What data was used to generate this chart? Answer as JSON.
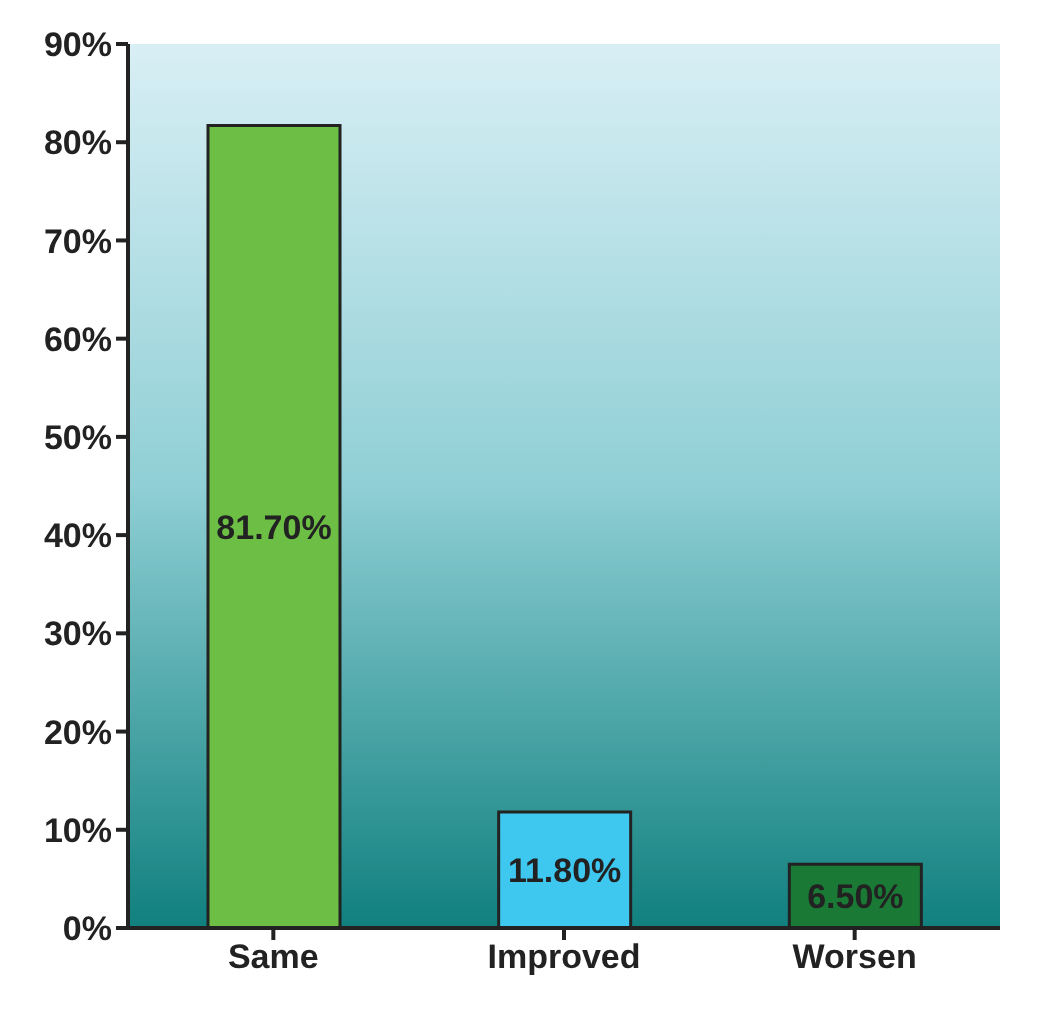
{
  "chart_data": {
    "type": "bar",
    "categories": [
      "Same",
      "Improved",
      "Worsen"
    ],
    "values": [
      81.7,
      11.8,
      6.5
    ],
    "colors": [
      "#6cbf44",
      "#3ec8f0",
      "#1a7a35"
    ],
    "value_labels": [
      "81.70%",
      "11.80%",
      "6.50%"
    ],
    "ylim": [
      0,
      90
    ],
    "yticks": [
      {
        "value": 0,
        "label": "0%"
      },
      {
        "value": 10,
        "label": "10%"
      },
      {
        "value": 20,
        "label": "20%"
      },
      {
        "value": 30,
        "label": "30%"
      },
      {
        "value": 40,
        "label": "40%"
      },
      {
        "value": 50,
        "label": "50%"
      },
      {
        "value": 60,
        "label": "60%"
      },
      {
        "value": 70,
        "label": "70%"
      },
      {
        "value": 80,
        "label": "80%"
      },
      {
        "value": 90,
        "label": "90%"
      }
    ],
    "grid": false
  }
}
